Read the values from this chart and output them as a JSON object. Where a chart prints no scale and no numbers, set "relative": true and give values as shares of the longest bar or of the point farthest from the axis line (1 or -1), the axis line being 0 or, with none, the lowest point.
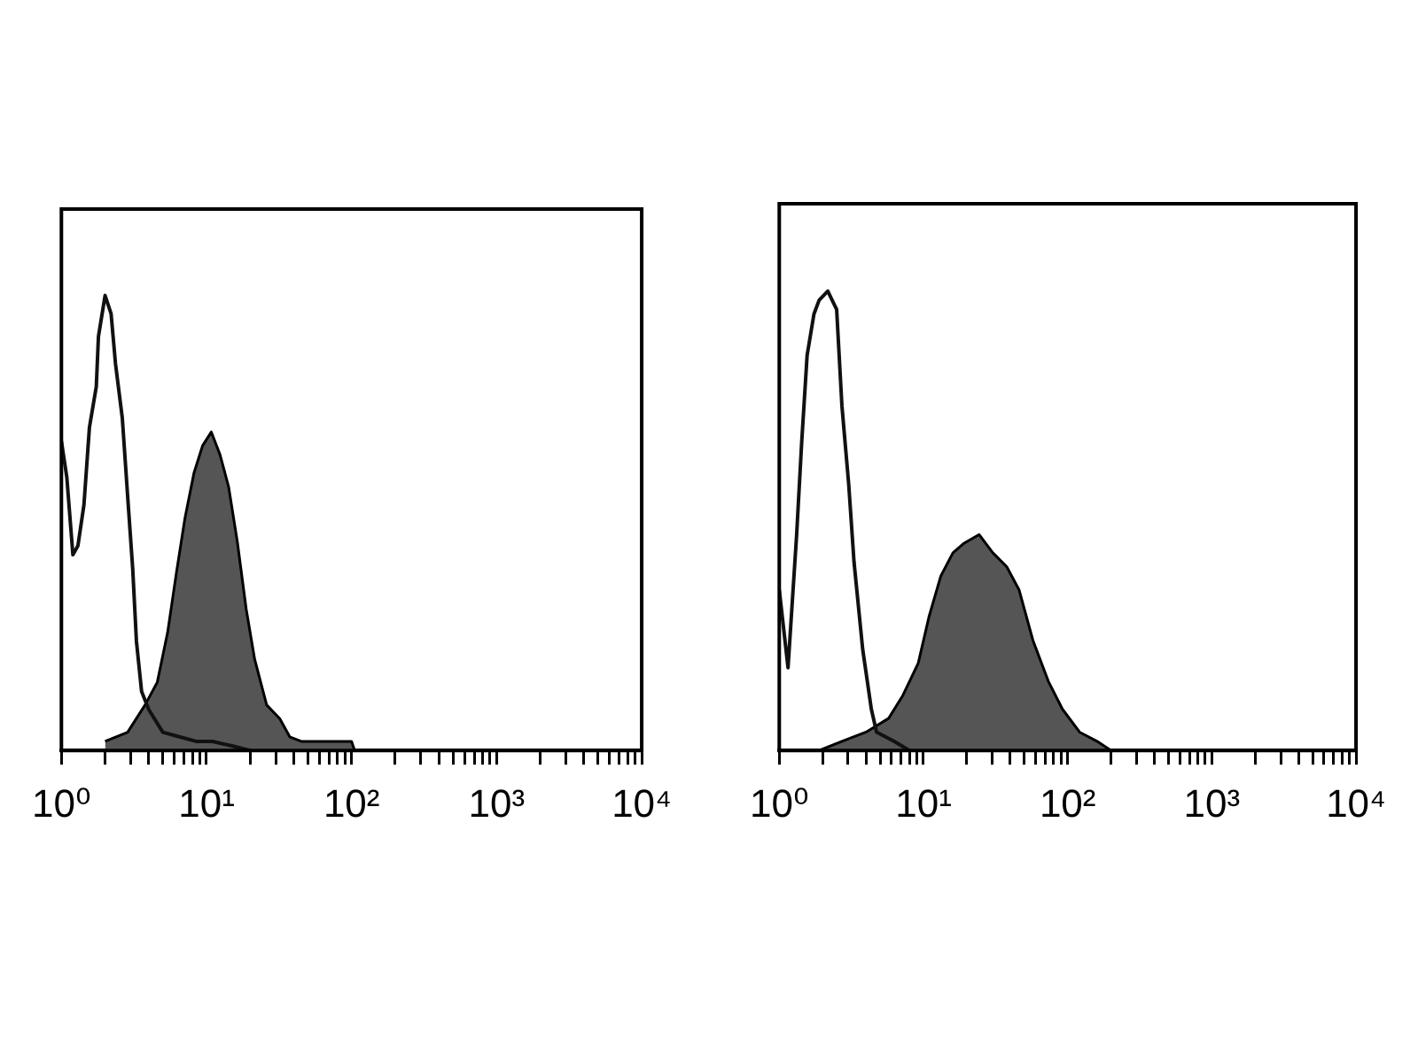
{
  "chart_data": [
    {
      "type": "area",
      "relative": true,
      "log": "x",
      "xlim": [
        1,
        10000
      ],
      "xticks": [
        {
          "value": 1,
          "label": "10⁰"
        },
        {
          "value": 2,
          "label": null
        },
        {
          "value": 3,
          "label": null
        },
        {
          "value": 4,
          "label": null
        },
        {
          "value": 5,
          "label": null
        },
        {
          "value": 6,
          "label": null
        },
        {
          "value": 7,
          "label": null
        },
        {
          "value": 8,
          "label": null
        },
        {
          "value": 9,
          "label": null
        },
        {
          "value": 10,
          "label": "10¹"
        },
        {
          "value": 20,
          "label": null
        },
        {
          "value": 30,
          "label": null
        },
        {
          "value": 40,
          "label": null
        },
        {
          "value": 50,
          "label": null
        },
        {
          "value": 60,
          "label": null
        },
        {
          "value": 70,
          "label": null
        },
        {
          "value": 80,
          "label": null
        },
        {
          "value": 90,
          "label": null
        },
        {
          "value": 100,
          "label": "10²"
        },
        {
          "value": 200,
          "label": null
        },
        {
          "value": 300,
          "label": null
        },
        {
          "value": 400,
          "label": null
        },
        {
          "value": 500,
          "label": null
        },
        {
          "value": 600,
          "label": null
        },
        {
          "value": 700,
          "label": null
        },
        {
          "value": 800,
          "label": null
        },
        {
          "value": 900,
          "label": null
        },
        {
          "value": 1000,
          "label": "10³"
        },
        {
          "value": 2000,
          "label": null
        },
        {
          "value": 3000,
          "label": null
        },
        {
          "value": 4000,
          "label": null
        },
        {
          "value": 5000,
          "label": null
        },
        {
          "value": 6000,
          "label": null
        },
        {
          "value": 7000,
          "label": null
        },
        {
          "value": 8000,
          "label": null
        },
        {
          "value": 9000,
          "label": null
        },
        {
          "value": 10000,
          "label": "10⁴"
        }
      ],
      "series": [
        {
          "type": "line",
          "color": "#111111",
          "x": [
            1.0,
            1.09,
            1.2,
            1.3,
            1.43,
            1.56,
            1.74,
            1.8,
            2.0,
            2.2,
            2.36,
            2.63,
            2.86,
            3.1,
            3.29,
            3.57,
            4.0,
            5.0,
            6.5,
            8.5,
            11,
            15,
            20
          ],
          "values": [
            0.68,
            0.6,
            0.43,
            0.45,
            0.54,
            0.71,
            0.8,
            0.91,
            1.0,
            0.96,
            0.85,
            0.73,
            0.56,
            0.4,
            0.24,
            0.13,
            0.09,
            0.04,
            0.03,
            0.02,
            0.02,
            0.01,
            0
          ]
        },
        {
          "color": "#555555",
          "x": [
            2.0,
            2.86,
            3.77,
            4.58,
            5.4,
            6.2,
            7.1,
            8.2,
            9.4,
            10.8,
            12.4,
            14.2,
            16.3,
            18.8,
            21.5,
            26,
            32,
            37.5,
            45,
            100,
            105
          ],
          "values": [
            0.02,
            0.04,
            0.1,
            0.15,
            0.26,
            0.39,
            0.51,
            0.61,
            0.67,
            0.7,
            0.65,
            0.58,
            0.46,
            0.31,
            0.2,
            0.1,
            0.07,
            0.03,
            0.02,
            0.02,
            0
          ]
        }
      ]
    },
    {
      "type": "area",
      "relative": true,
      "log": "x",
      "xlim": [
        1,
        10000
      ],
      "xticks": [
        {
          "value": 1,
          "label": "10⁰"
        },
        {
          "value": 2,
          "label": null
        },
        {
          "value": 3,
          "label": null
        },
        {
          "value": 4,
          "label": null
        },
        {
          "value": 5,
          "label": null
        },
        {
          "value": 6,
          "label": null
        },
        {
          "value": 7,
          "label": null
        },
        {
          "value": 8,
          "label": null
        },
        {
          "value": 9,
          "label": null
        },
        {
          "value": 10,
          "label": "10¹"
        },
        {
          "value": 20,
          "label": null
        },
        {
          "value": 30,
          "label": null
        },
        {
          "value": 40,
          "label": null
        },
        {
          "value": 50,
          "label": null
        },
        {
          "value": 60,
          "label": null
        },
        {
          "value": 70,
          "label": null
        },
        {
          "value": 80,
          "label": null
        },
        {
          "value": 90,
          "label": null
        },
        {
          "value": 100,
          "label": "10²"
        },
        {
          "value": 200,
          "label": null
        },
        {
          "value": 300,
          "label": null
        },
        {
          "value": 400,
          "label": null
        },
        {
          "value": 500,
          "label": null
        },
        {
          "value": 600,
          "label": null
        },
        {
          "value": 700,
          "label": null
        },
        {
          "value": 800,
          "label": null
        },
        {
          "value": 900,
          "label": null
        },
        {
          "value": 1000,
          "label": "10³"
        },
        {
          "value": 2000,
          "label": null
        },
        {
          "value": 3000,
          "label": null
        },
        {
          "value": 4000,
          "label": null
        },
        {
          "value": 5000,
          "label": null
        },
        {
          "value": 6000,
          "label": null
        },
        {
          "value": 7000,
          "label": null
        },
        {
          "value": 8000,
          "label": null
        },
        {
          "value": 9000,
          "label": null
        },
        {
          "value": 10000,
          "label": "10⁴"
        }
      ],
      "series": [
        {
          "type": "line",
          "color": "#111111",
          "x": [
            1.0,
            1.15,
            1.32,
            1.43,
            1.56,
            1.74,
            1.89,
            2.17,
            2.5,
            2.72,
            3.03,
            3.3,
            3.79,
            4.35,
            4.73,
            6.24,
            8
          ],
          "values": [
            0.35,
            0.18,
            0.47,
            0.67,
            0.86,
            0.95,
            0.98,
            1.0,
            0.96,
            0.75,
            0.58,
            0.41,
            0.22,
            0.09,
            0.04,
            0.02,
            0
          ]
        },
        {
          "color": "#555555",
          "x": [
            1.89,
            2.72,
            4.0,
            5.74,
            7.2,
            9.2,
            10.9,
            13.2,
            16,
            18.9,
            24.3,
            30.3,
            37.8,
            46,
            57.4,
            73.6,
            92,
            121,
            160,
            200
          ],
          "values": [
            0,
            0.02,
            0.04,
            0.07,
            0.12,
            0.19,
            0.29,
            0.38,
            0.43,
            0.45,
            0.47,
            0.43,
            0.4,
            0.35,
            0.24,
            0.15,
            0.09,
            0.04,
            0.02,
            0
          ]
        }
      ]
    }
  ]
}
